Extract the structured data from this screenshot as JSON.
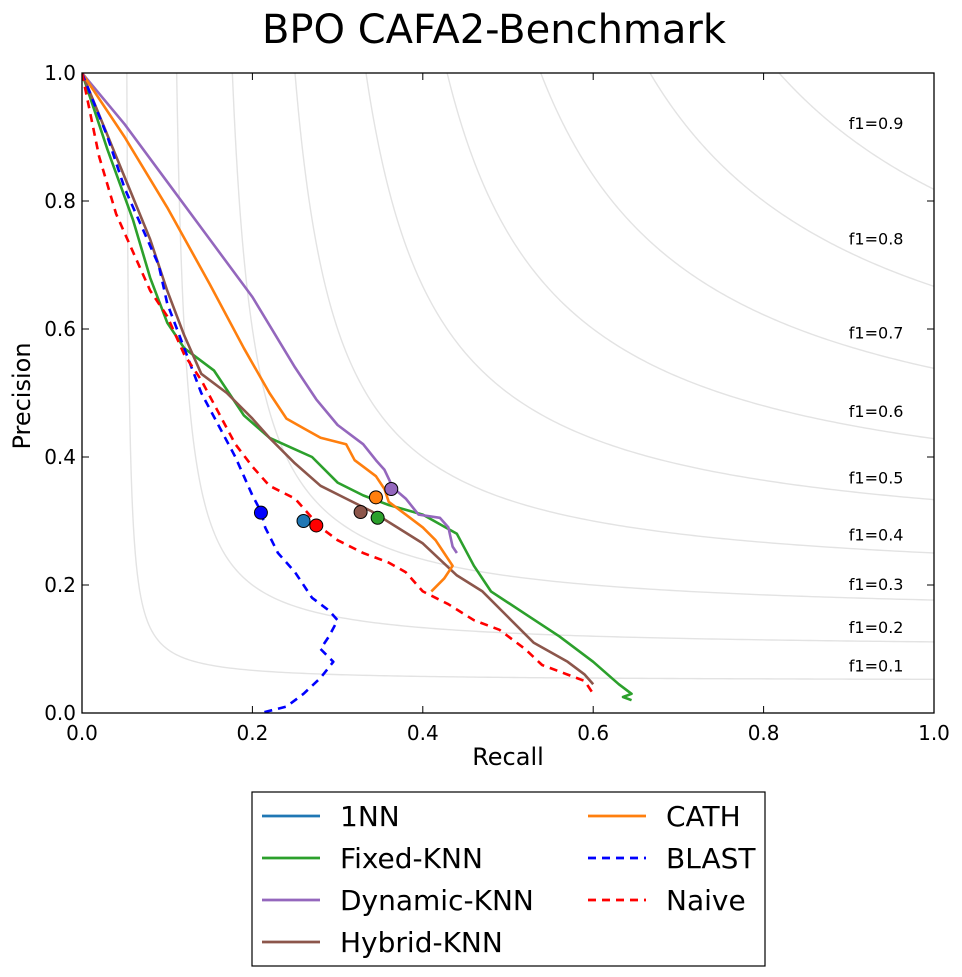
{
  "chart_data": {
    "type": "line",
    "title": "BPO CAFA2-Benchmark",
    "xlabel": "Recall",
    "ylabel": "Precision",
    "xlim": [
      0,
      1
    ],
    "ylim": [
      0,
      1
    ],
    "xticks": [
      "0.0",
      "0.2",
      "0.4",
      "0.6",
      "0.8",
      "1.0"
    ],
    "yticks": [
      "0.0",
      "0.2",
      "0.4",
      "0.6",
      "0.8",
      "1.0"
    ],
    "grid": false,
    "legend_position": "bottom-center, outside plot, 2 columns",
    "iso_f1": [
      {
        "f": 0.1,
        "label": "f1=0.1"
      },
      {
        "f": 0.2,
        "label": "f1=0.2"
      },
      {
        "f": 0.3,
        "label": "f1=0.3"
      },
      {
        "f": 0.4,
        "label": "f1=0.4"
      },
      {
        "f": 0.5,
        "label": "f1=0.5"
      },
      {
        "f": 0.6,
        "label": "f1=0.6"
      },
      {
        "f": 0.7,
        "label": "f1=0.7"
      },
      {
        "f": 0.8,
        "label": "f1=0.8"
      },
      {
        "f": 0.9,
        "label": "f1=0.9"
      }
    ],
    "series": [
      {
        "name": "1NN",
        "color": "#1f77b4",
        "dashed": false,
        "points": [],
        "fmax": [
          0.26,
          0.3
        ]
      },
      {
        "name": "Fixed-KNN",
        "color": "#2ca02c",
        "dashed": false,
        "points": [
          [
            0.0,
            1.0
          ],
          [
            0.03,
            0.88
          ],
          [
            0.06,
            0.77
          ],
          [
            0.08,
            0.68
          ],
          [
            0.1,
            0.61
          ],
          [
            0.12,
            0.57
          ],
          [
            0.155,
            0.535
          ],
          [
            0.19,
            0.465
          ],
          [
            0.22,
            0.43
          ],
          [
            0.245,
            0.415
          ],
          [
            0.27,
            0.4
          ],
          [
            0.3,
            0.36
          ],
          [
            0.33,
            0.34
          ],
          [
            0.36,
            0.325
          ],
          [
            0.4,
            0.31
          ],
          [
            0.44,
            0.28
          ],
          [
            0.46,
            0.23
          ],
          [
            0.48,
            0.19
          ],
          [
            0.52,
            0.155
          ],
          [
            0.56,
            0.12
          ],
          [
            0.6,
            0.08
          ],
          [
            0.63,
            0.045
          ],
          [
            0.645,
            0.03
          ],
          [
            0.635,
            0.025
          ],
          [
            0.645,
            0.02
          ]
        ],
        "fmax": [
          0.347,
          0.305
        ]
      },
      {
        "name": "Dynamic-KNN",
        "color": "#9467bd",
        "dashed": false,
        "points": [
          [
            0.0,
            1.0
          ],
          [
            0.05,
            0.92
          ],
          [
            0.1,
            0.83
          ],
          [
            0.15,
            0.74
          ],
          [
            0.2,
            0.65
          ],
          [
            0.25,
            0.54
          ],
          [
            0.275,
            0.49
          ],
          [
            0.3,
            0.45
          ],
          [
            0.32,
            0.43
          ],
          [
            0.33,
            0.42
          ],
          [
            0.345,
            0.395
          ],
          [
            0.355,
            0.38
          ],
          [
            0.365,
            0.352
          ],
          [
            0.38,
            0.335
          ],
          [
            0.395,
            0.31
          ],
          [
            0.42,
            0.305
          ],
          [
            0.43,
            0.29
          ],
          [
            0.435,
            0.26
          ],
          [
            0.44,
            0.25
          ]
        ],
        "fmax": [
          0.363,
          0.35
        ]
      },
      {
        "name": "Hybrid-KNN",
        "color": "#8c564b",
        "dashed": false,
        "points": [
          [
            0.0,
            1.0
          ],
          [
            0.04,
            0.87
          ],
          [
            0.08,
            0.74
          ],
          [
            0.1,
            0.66
          ],
          [
            0.12,
            0.59
          ],
          [
            0.14,
            0.53
          ],
          [
            0.17,
            0.5
          ],
          [
            0.2,
            0.46
          ],
          [
            0.22,
            0.43
          ],
          [
            0.25,
            0.39
          ],
          [
            0.28,
            0.355
          ],
          [
            0.31,
            0.335
          ],
          [
            0.34,
            0.315
          ],
          [
            0.37,
            0.29
          ],
          [
            0.4,
            0.265
          ],
          [
            0.42,
            0.24
          ],
          [
            0.44,
            0.215
          ],
          [
            0.47,
            0.19
          ],
          [
            0.5,
            0.15
          ],
          [
            0.53,
            0.11
          ],
          [
            0.57,
            0.08
          ],
          [
            0.59,
            0.06
          ],
          [
            0.6,
            0.045
          ]
        ],
        "fmax": [
          0.327,
          0.314
        ]
      },
      {
        "name": "CATH",
        "color": "#ff7f0e",
        "dashed": false,
        "points": [
          [
            0.0,
            1.0
          ],
          [
            0.05,
            0.9
          ],
          [
            0.1,
            0.79
          ],
          [
            0.15,
            0.67
          ],
          [
            0.19,
            0.57
          ],
          [
            0.22,
            0.5
          ],
          [
            0.24,
            0.46
          ],
          [
            0.26,
            0.445
          ],
          [
            0.28,
            0.43
          ],
          [
            0.31,
            0.42
          ],
          [
            0.32,
            0.395
          ],
          [
            0.33,
            0.385
          ],
          [
            0.345,
            0.37
          ],
          [
            0.355,
            0.35
          ],
          [
            0.36,
            0.33
          ],
          [
            0.38,
            0.31
          ],
          [
            0.4,
            0.29
          ],
          [
            0.415,
            0.27
          ],
          [
            0.425,
            0.25
          ],
          [
            0.435,
            0.23
          ],
          [
            0.425,
            0.21
          ],
          [
            0.41,
            0.19
          ]
        ],
        "fmax": [
          0.345,
          0.337
        ]
      },
      {
        "name": "BLAST",
        "color": "#0000ff",
        "dashed": true,
        "points": [
          [
            0.0,
            1.0
          ],
          [
            0.03,
            0.9
          ],
          [
            0.05,
            0.82
          ],
          [
            0.07,
            0.76
          ],
          [
            0.09,
            0.7
          ],
          [
            0.1,
            0.64
          ],
          [
            0.12,
            0.57
          ],
          [
            0.14,
            0.5
          ],
          [
            0.16,
            0.45
          ],
          [
            0.18,
            0.4
          ],
          [
            0.19,
            0.37
          ],
          [
            0.2,
            0.34
          ],
          [
            0.21,
            0.315
          ],
          [
            0.215,
            0.29
          ],
          [
            0.23,
            0.25
          ],
          [
            0.25,
            0.22
          ],
          [
            0.27,
            0.18
          ],
          [
            0.29,
            0.16
          ],
          [
            0.3,
            0.145
          ],
          [
            0.29,
            0.12
          ],
          [
            0.28,
            0.1
          ],
          [
            0.295,
            0.08
          ],
          [
            0.28,
            0.055
          ],
          [
            0.26,
            0.03
          ],
          [
            0.24,
            0.01
          ],
          [
            0.21,
            0.0
          ]
        ],
        "fmax": [
          0.21,
          0.313
        ]
      },
      {
        "name": "Naive",
        "color": "#ff0000",
        "dashed": true,
        "points": [
          [
            0.0,
            1.0
          ],
          [
            0.02,
            0.87
          ],
          [
            0.04,
            0.78
          ],
          [
            0.06,
            0.72
          ],
          [
            0.08,
            0.66
          ],
          [
            0.1,
            0.62
          ],
          [
            0.12,
            0.56
          ],
          [
            0.14,
            0.52
          ],
          [
            0.16,
            0.47
          ],
          [
            0.18,
            0.42
          ],
          [
            0.2,
            0.385
          ],
          [
            0.22,
            0.355
          ],
          [
            0.25,
            0.335
          ],
          [
            0.28,
            0.29
          ],
          [
            0.3,
            0.27
          ],
          [
            0.33,
            0.25
          ],
          [
            0.36,
            0.235
          ],
          [
            0.38,
            0.22
          ],
          [
            0.4,
            0.19
          ],
          [
            0.43,
            0.17
          ],
          [
            0.46,
            0.145
          ],
          [
            0.49,
            0.13
          ],
          [
            0.52,
            0.1
          ],
          [
            0.54,
            0.075
          ],
          [
            0.57,
            0.06
          ],
          [
            0.59,
            0.05
          ],
          [
            0.6,
            0.03
          ]
        ],
        "fmax": [
          0.275,
          0.293
        ]
      }
    ]
  }
}
